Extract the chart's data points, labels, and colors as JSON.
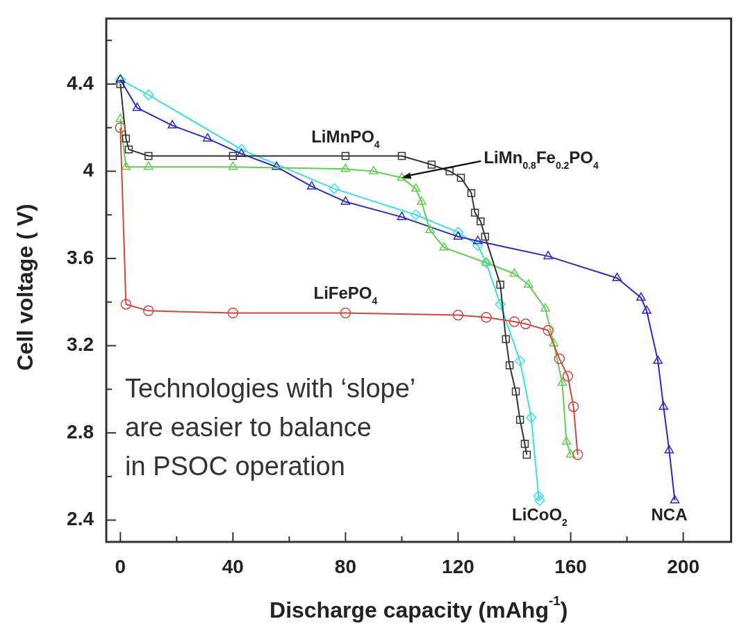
{
  "chart_data": {
    "type": "line",
    "xlabel": "Discharge capacity (mAhg$^{-1}$)",
    "ylabel": "Cell voltage ( V)",
    "xlim": [
      -5,
      217
    ],
    "xticks": [
      0,
      {
        "value": 20,
        "label": null
      },
      40,
      {
        "value": 60,
        "label": null
      },
      80,
      {
        "value": 100,
        "label": null
      },
      120,
      {
        "value": 140,
        "label": null
      },
      160,
      {
        "value": 180,
        "label": null
      },
      200
    ],
    "ylim": [
      2.3,
      4.7
    ],
    "yticks": [
      2.4,
      {
        "value": 2.6,
        "label": null
      },
      2.8,
      {
        "value": 3.0,
        "label": null
      },
      3.2,
      {
        "value": 3.4,
        "label": null
      },
      3.6,
      {
        "value": 3.8,
        "label": null
      },
      4.0,
      {
        "value": 4.2,
        "label": null
      },
      4.4,
      {
        "value": 4.6,
        "label": null
      }
    ],
    "line_style": "solid",
    "legend": false,
    "series": [
      {
        "name": "LiFePO$_{4}$",
        "color": "#d0473d",
        "marker": "circle",
        "x": [
          0,
          2,
          10,
          40,
          80,
          120,
          130,
          140,
          144,
          152,
          156,
          159,
          161,
          162.5
        ],
        "values": [
          4.2,
          3.39,
          3.36,
          3.35,
          3.35,
          3.34,
          3.33,
          3.31,
          3.3,
          3.27,
          3.14,
          3.06,
          2.92,
          2.7
        ]
      },
      {
        "name": "LiMnPO$_{4}$",
        "color": "#333333",
        "marker": "square",
        "x": [
          0,
          2,
          3,
          10,
          40,
          80,
          100,
          110.6,
          117,
          121,
          124.7,
          126,
          128,
          129.6,
          135,
          137,
          138.3,
          140.5,
          142,
          143.7,
          144.4
        ],
        "values": [
          4.4,
          4.15,
          4.1,
          4.07,
          4.07,
          4.07,
          4.07,
          4.03,
          4.0,
          3.97,
          3.9,
          3.81,
          3.77,
          3.7,
          3.48,
          3.23,
          3.11,
          2.99,
          2.86,
          2.75,
          2.7
        ]
      },
      {
        "name": "LiMn$_{0.8}$Fe$_{0.2}$PO$_{4}$",
        "color": "#5fcf50",
        "marker": "triangle",
        "x": [
          0,
          2,
          10,
          40,
          80,
          90,
          100,
          105,
          107,
          110,
          115,
          130,
          140,
          145,
          151,
          154,
          157,
          158.5,
          160
        ],
        "values": [
          4.24,
          4.02,
          4.02,
          4.02,
          4.01,
          4.0,
          3.97,
          3.92,
          3.86,
          3.73,
          3.65,
          3.58,
          3.53,
          3.48,
          3.37,
          3.21,
          3.03,
          2.76,
          2.7
        ]
      },
      {
        "name": "NCA",
        "color": "#2828c8",
        "marker": "triangle",
        "x": [
          0,
          6,
          18.5,
          31,
          43,
          55.5,
          68,
          80,
          100,
          120,
          127,
          152,
          176.5,
          185,
          187,
          191,
          193,
          195,
          197
        ],
        "values": [
          4.42,
          4.29,
          4.21,
          4.15,
          4.08,
          4.02,
          3.93,
          3.86,
          3.79,
          3.7,
          3.68,
          3.61,
          3.51,
          3.42,
          3.36,
          3.13,
          2.92,
          2.72,
          2.49
        ]
      },
      {
        "name": "LiCoO$_{2}$",
        "color": "#38e0e6",
        "marker": "diamond",
        "x": [
          0,
          10,
          43,
          76,
          105,
          120,
          127,
          130,
          135,
          142,
          146,
          148.6,
          149
        ],
        "values": [
          4.42,
          4.35,
          4.1,
          3.92,
          3.8,
          3.72,
          3.66,
          3.58,
          3.39,
          3.13,
          2.87,
          2.51,
          2.49
        ]
      }
    ],
    "annotations": [
      "Technologies with ‘slope’",
      "are easier to balance",
      "in PSOC operation"
    ]
  }
}
